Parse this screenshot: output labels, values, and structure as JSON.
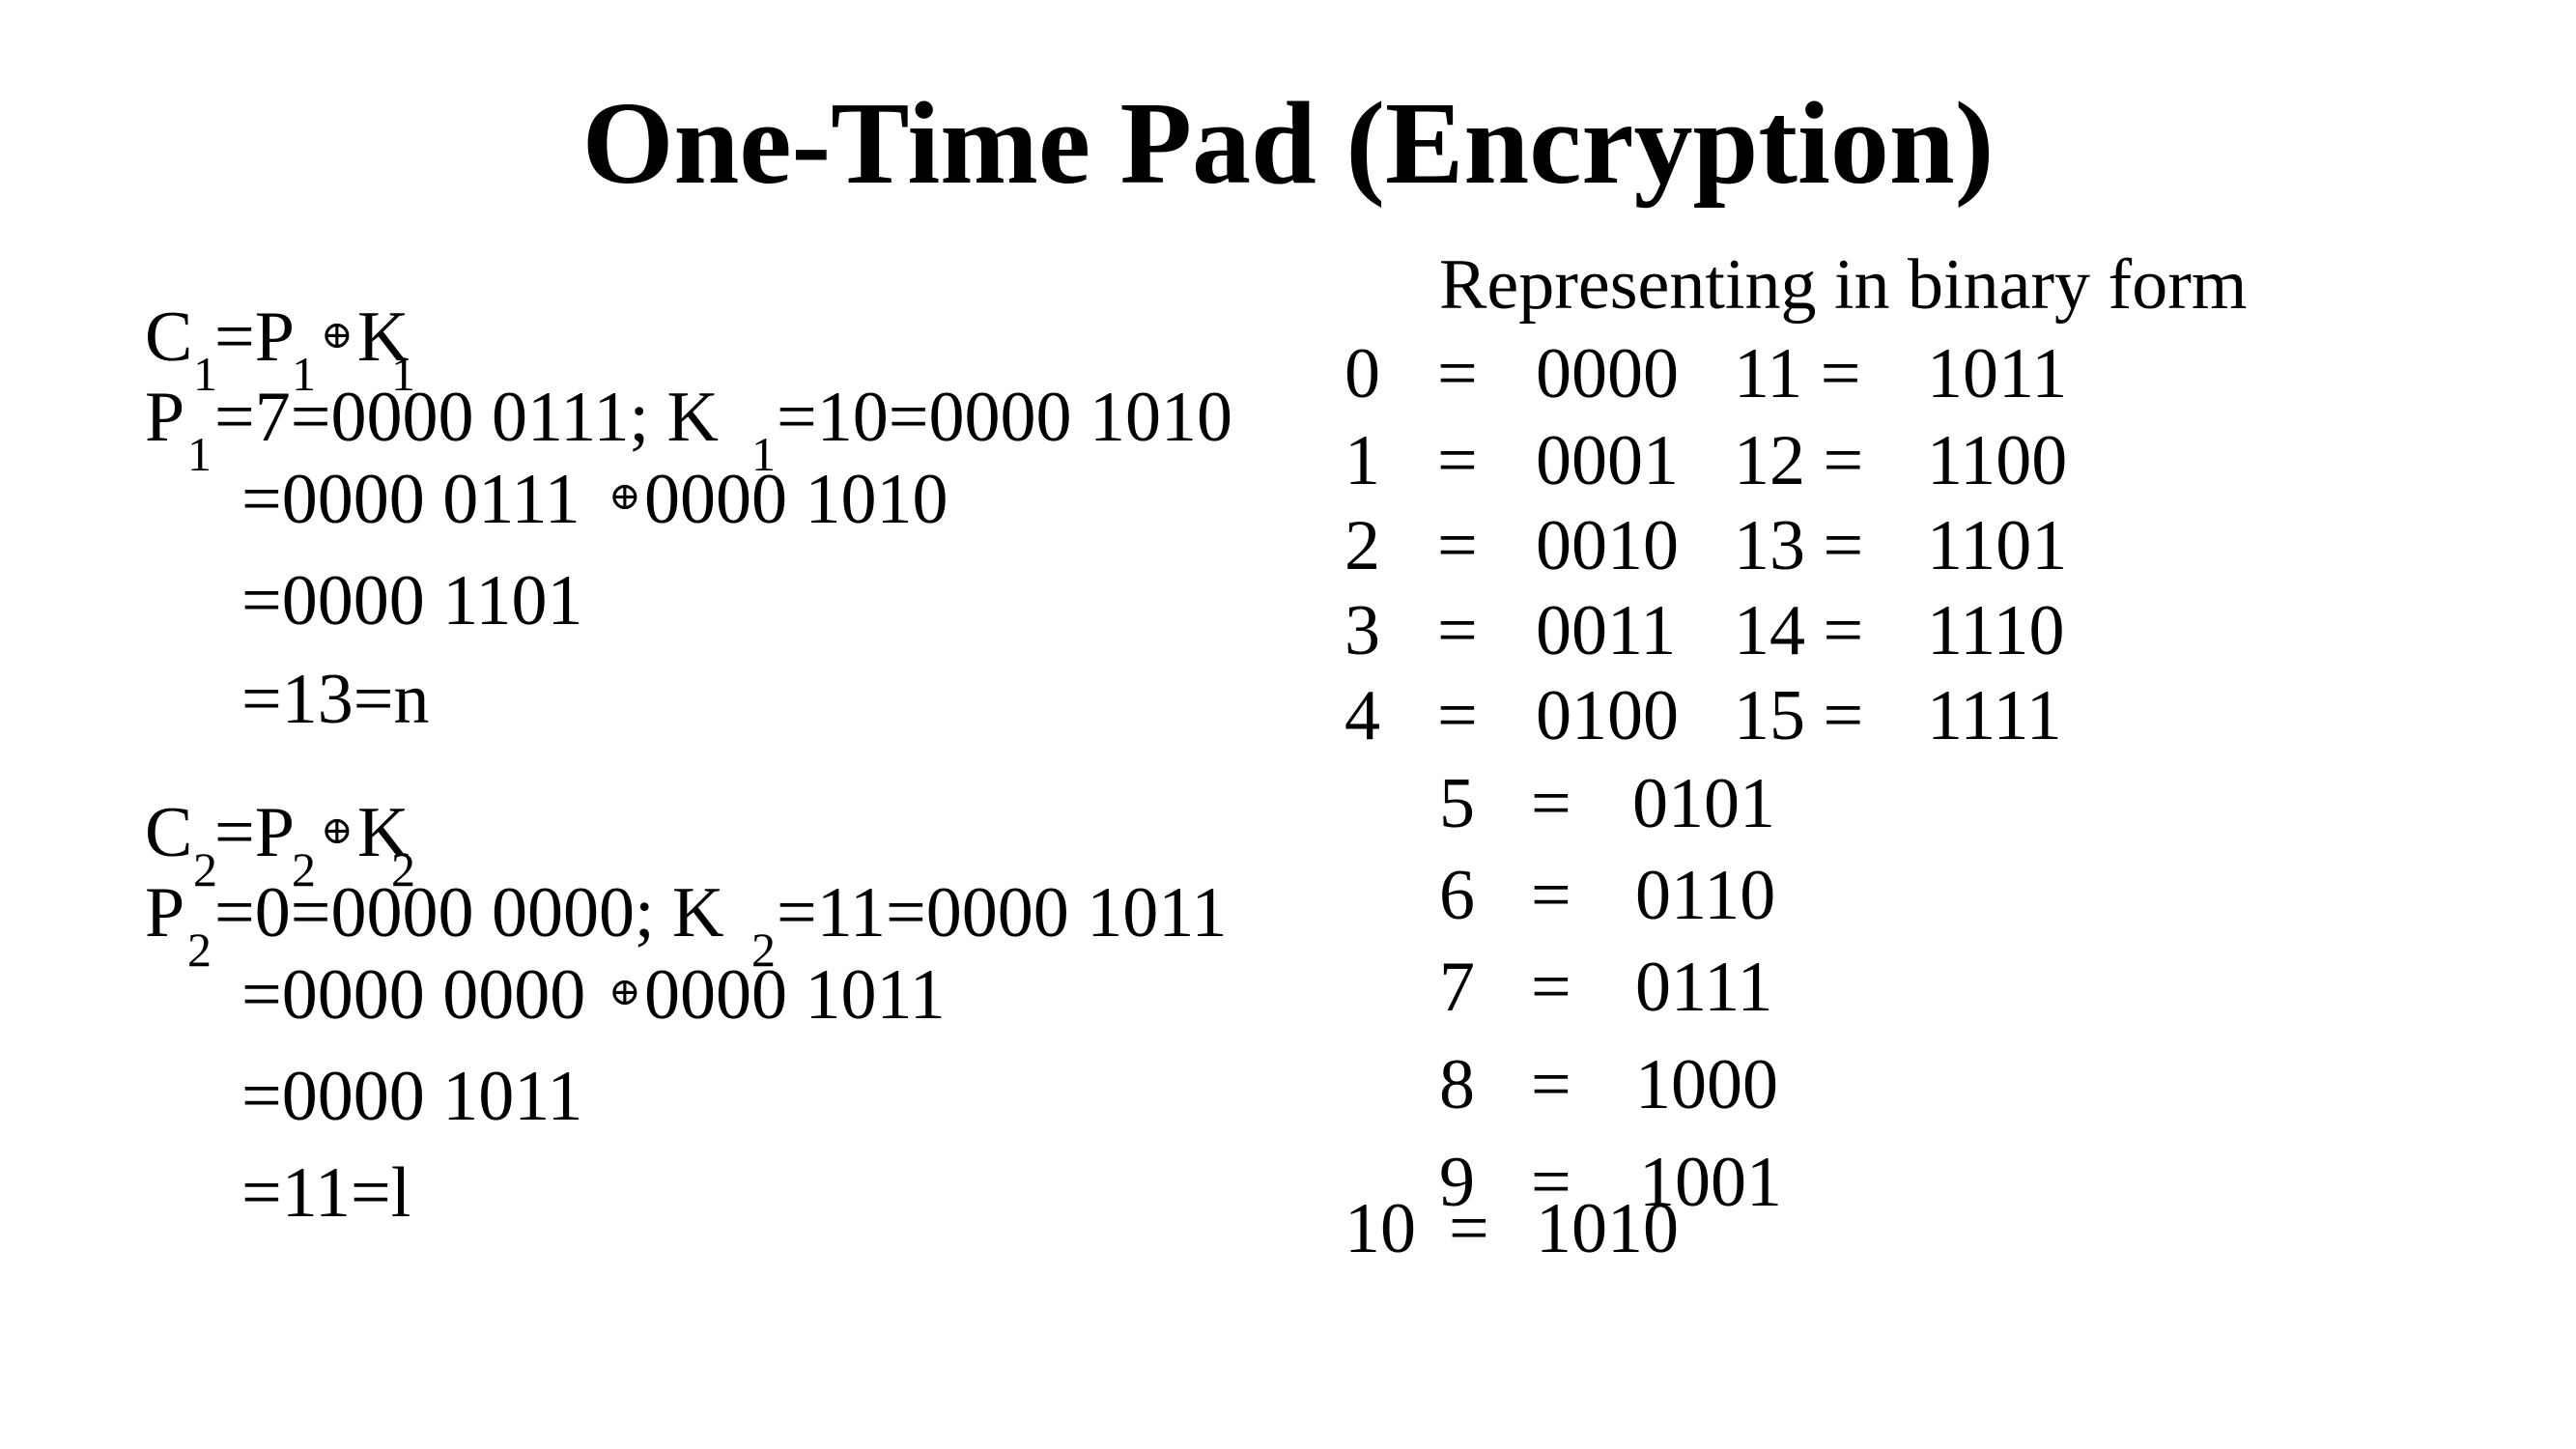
{
  "title": "One-Time Pad (Encryption)",
  "block1": {
    "eq_C": "C",
    "eq_C_sub": "1",
    "eq_P": "=P",
    "eq_P_sub": "1",
    "eq_xor": "⊕",
    "eq_K": "K",
    "eq_K_sub": "1",
    "line2_P": "P",
    "line2_P_sub": "1",
    "line2_mid": "=7=0000 0111; K",
    "line2_K_sub": "1",
    "line2_end": "=10=0000 1010",
    "line3_a": "=0000 0111",
    "line3_xor": "⊕",
    "line3_b": "0000 1010",
    "line4": "=0000 1101",
    "line5": "=13=n"
  },
  "block2": {
    "eq_C": "C",
    "eq_C_sub": "2",
    "eq_P": "=P",
    "eq_P_sub": "2",
    "eq_xor": "⊕",
    "eq_K": "K",
    "eq_K_sub": "2",
    "line2_P": "P",
    "line2_P_sub": "2",
    "line2_mid": "=0=0000 0000; K",
    "line2_K_sub": "2",
    "line2_end": "=11=0000 1011",
    "line3_a": "=0000 0000",
    "line3_xor": "⊕",
    "line3_b": "0000 1011",
    "line4": "=0000 1011",
    "line5": "=11=l"
  },
  "binary": {
    "heading": "Representing in binary form",
    "rows": [
      {
        "n": "0",
        "eq": "=",
        "bin": "0000",
        "n2": "11 =",
        "bin2": "1011"
      },
      {
        "n": "1",
        "eq": "=",
        "bin": "0001",
        "n2": "12 =",
        "bin2": "1100"
      },
      {
        "n": "2",
        "eq": "=",
        "bin": "0010",
        "n2": "13 =",
        "bin2": "1101"
      },
      {
        "n": "3",
        "eq": "=",
        "bin": "0011",
        "n2": "14 =",
        "bin2": "1110"
      },
      {
        "n": "4",
        "eq": "=",
        "bin": "0100",
        "n2": "15 =",
        "bin2": "1111"
      },
      {
        "n": "5",
        "eq": "=",
        "bin": "0101"
      },
      {
        "n": "6",
        "eq": "=",
        "bin": "0110"
      },
      {
        "n": "7",
        "eq": "=",
        "bin": "0111"
      },
      {
        "n": "8",
        "eq": "=",
        "bin": "1000"
      },
      {
        "n": "9",
        "eq": "=",
        "bin": "1001"
      },
      {
        "n": "10",
        "eq": "=",
        "bin": "1010"
      }
    ]
  }
}
